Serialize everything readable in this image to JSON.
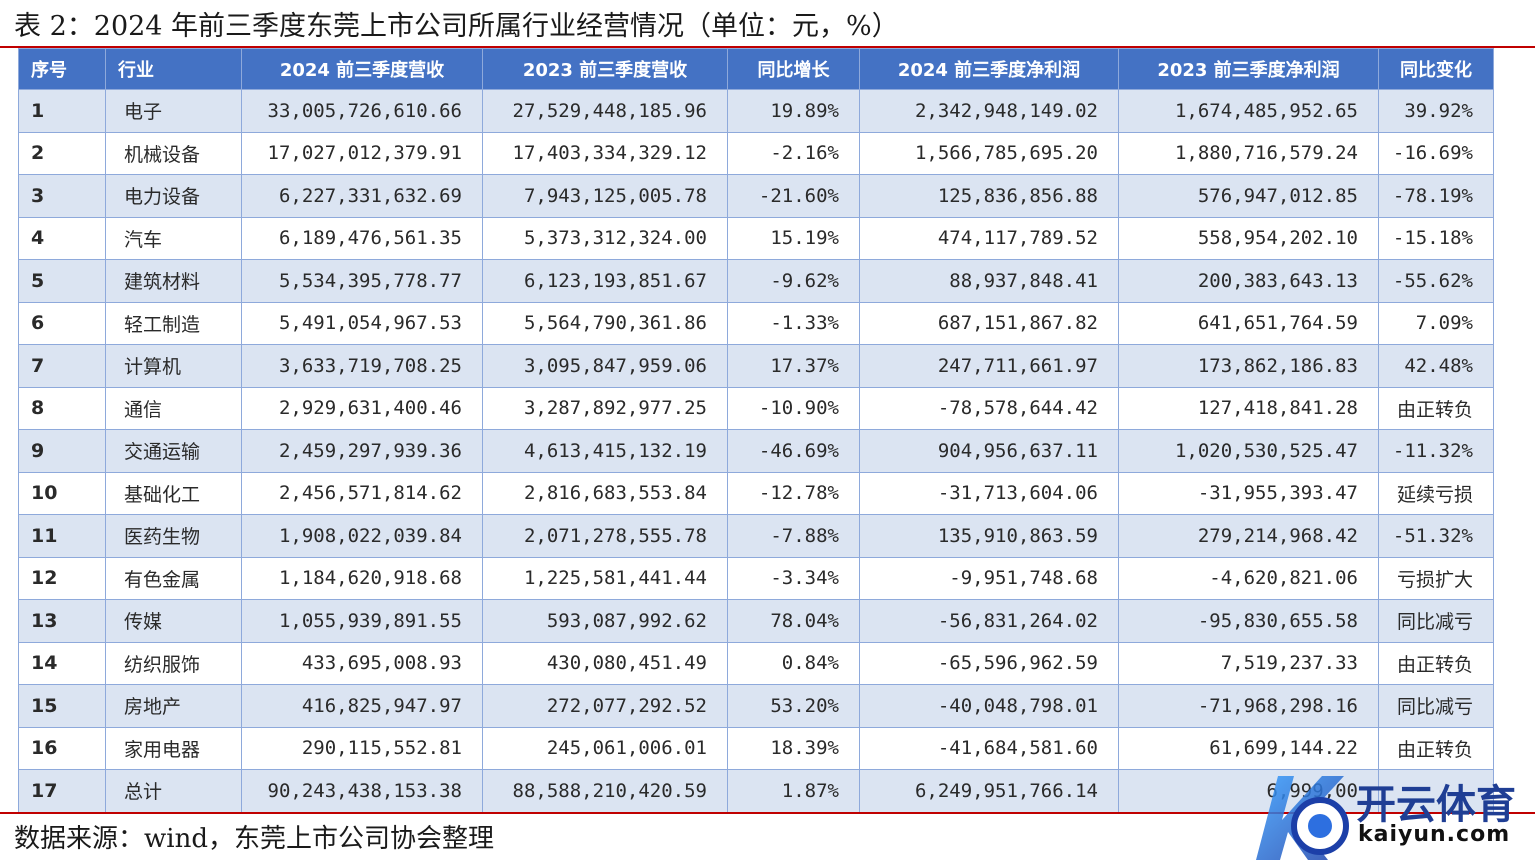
{
  "title": "表 2：2024 年前三季度东莞上市公司所属行业经营情况（单位：元，%）",
  "columns": [
    "序号",
    "行业",
    "2024 前三季度营收",
    "2023 前三季度营收",
    "同比增长",
    "2024 前三季度净利润",
    "2023 前三季度净利润",
    "同比变化"
  ],
  "rows": [
    [
      "1",
      "电子",
      "33,005,726,610.66",
      "27,529,448,185.96",
      "19.89%",
      "2,342,948,149.02",
      "1,674,485,952.65",
      "39.92%"
    ],
    [
      "2",
      "机械设备",
      "17,027,012,379.91",
      "17,403,334,329.12",
      "-2.16%",
      "1,566,785,695.20",
      "1,880,716,579.24",
      "-16.69%"
    ],
    [
      "3",
      "电力设备",
      "6,227,331,632.69",
      "7,943,125,005.78",
      "-21.60%",
      "125,836,856.88",
      "576,947,012.85",
      "-78.19%"
    ],
    [
      "4",
      "汽车",
      "6,189,476,561.35",
      "5,373,312,324.00",
      "15.19%",
      "474,117,789.52",
      "558,954,202.10",
      "-15.18%"
    ],
    [
      "5",
      "建筑材料",
      "5,534,395,778.77",
      "6,123,193,851.67",
      "-9.62%",
      "88,937,848.41",
      "200,383,643.13",
      "-55.62%"
    ],
    [
      "6",
      "轻工制造",
      "5,491,054,967.53",
      "5,564,790,361.86",
      "-1.33%",
      "687,151,867.82",
      "641,651,764.59",
      "7.09%"
    ],
    [
      "7",
      "计算机",
      "3,633,719,708.25",
      "3,095,847,959.06",
      "17.37%",
      "247,711,661.97",
      "173,862,186.83",
      "42.48%"
    ],
    [
      "8",
      "通信",
      "2,929,631,400.46",
      "3,287,892,977.25",
      "-10.90%",
      "-78,578,644.42",
      "127,418,841.28",
      "由正转负"
    ],
    [
      "9",
      "交通运输",
      "2,459,297,939.36",
      "4,613,415,132.19",
      "-46.69%",
      "904,956,637.11",
      "1,020,530,525.47",
      "-11.32%"
    ],
    [
      "10",
      "基础化工",
      "2,456,571,814.62",
      "2,816,683,553.84",
      "-12.78%",
      "-31,713,604.06",
      "-31,955,393.47",
      "延续亏损"
    ],
    [
      "11",
      "医药生物",
      "1,908,022,039.84",
      "2,071,278,555.78",
      "-7.88%",
      "135,910,863.59",
      "279,214,968.42",
      "-51.32%"
    ],
    [
      "12",
      "有色金属",
      "1,184,620,918.68",
      "1,225,581,441.44",
      "-3.34%",
      "-9,951,748.68",
      "-4,620,821.06",
      "亏损扩大"
    ],
    [
      "13",
      "传媒",
      "1,055,939,891.55",
      "593,087,992.62",
      "78.04%",
      "-56,831,264.02",
      "-95,830,655.58",
      "同比减亏"
    ],
    [
      "14",
      "纺织服饰",
      "433,695,008.93",
      "430,080,451.49",
      "0.84%",
      "-65,596,962.59",
      "7,519,237.33",
      "由正转负"
    ],
    [
      "15",
      "房地产",
      "416,825,947.97",
      "272,077,292.52",
      "53.20%",
      "-40,048,798.01",
      "-71,968,298.16",
      "同比减亏"
    ],
    [
      "16",
      "家用电器",
      "290,115,552.81",
      "245,061,006.01",
      "18.39%",
      "-41,684,581.60",
      "61,699,144.22",
      "由正转负"
    ],
    [
      "17",
      "总计",
      "90,243,438,153.38",
      "88,588,210,420.59",
      "1.87%",
      "6,249,951,766.14",
      "6,999,00",
      ""
    ]
  ],
  "source": "数据来源：wind，东莞上市公司协会整理",
  "watermark": {
    "brand": "开云体育",
    "domain": "kaiyun.com"
  },
  "colors": {
    "header_bg": "#4472c4",
    "stripe": "#dbe4f2",
    "rule": "#c00000",
    "brand": "#1f3e94"
  }
}
